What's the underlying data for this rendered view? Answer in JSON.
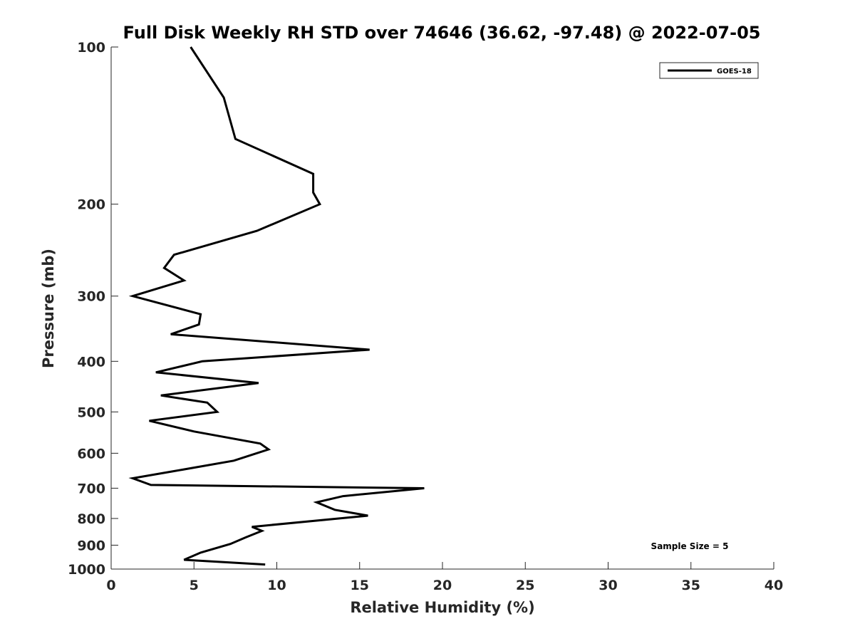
{
  "chart_data": {
    "type": "line",
    "title": "Full Disk Weekly RH STD over 74646 (36.62, -97.48) @ 2022-07-05",
    "xlabel": "Relative Humidity (%)",
    "ylabel": "Pressure (mb)",
    "xlim": [
      0,
      40
    ],
    "ylim": [
      100,
      1000
    ],
    "y_scale": "log",
    "y_reversed": true,
    "x_ticks": [
      0,
      5,
      10,
      15,
      20,
      25,
      30,
      35,
      40
    ],
    "y_ticks": [
      100,
      200,
      300,
      400,
      500,
      600,
      700,
      800,
      900,
      1000
    ],
    "grid": false,
    "legend_position": "top-right",
    "annotation": "Sample Size = 5",
    "series": [
      {
        "name": "GOES-18",
        "color": "#000000",
        "points": [
          [
            4.8,
            100
          ],
          [
            6.8,
            125
          ],
          [
            7.5,
            150
          ],
          [
            12.2,
            175
          ],
          [
            12.2,
            190
          ],
          [
            12.6,
            200
          ],
          [
            8.8,
            225
          ],
          [
            3.8,
            250
          ],
          [
            3.2,
            265
          ],
          [
            4.4,
            280
          ],
          [
            1.3,
            300
          ],
          [
            5.4,
            325
          ],
          [
            5.3,
            340
          ],
          [
            3.6,
            355
          ],
          [
            15.6,
            380
          ],
          [
            5.5,
            400
          ],
          [
            2.7,
            420
          ],
          [
            8.9,
            440
          ],
          [
            3.0,
            465
          ],
          [
            5.8,
            480
          ],
          [
            6.4,
            500
          ],
          [
            2.3,
            520
          ],
          [
            5.0,
            545
          ],
          [
            9.0,
            575
          ],
          [
            9.5,
            590
          ],
          [
            7.4,
            620
          ],
          [
            3.7,
            650
          ],
          [
            1.3,
            670
          ],
          [
            2.4,
            690
          ],
          [
            18.9,
            700
          ],
          [
            14.0,
            725
          ],
          [
            12.4,
            745
          ],
          [
            13.5,
            770
          ],
          [
            15.5,
            790
          ],
          [
            8.5,
            830
          ],
          [
            9.1,
            845
          ],
          [
            8.1,
            870
          ],
          [
            7.2,
            895
          ],
          [
            5.4,
            930
          ],
          [
            4.4,
            960
          ],
          [
            9.3,
            980
          ]
        ]
      }
    ]
  }
}
